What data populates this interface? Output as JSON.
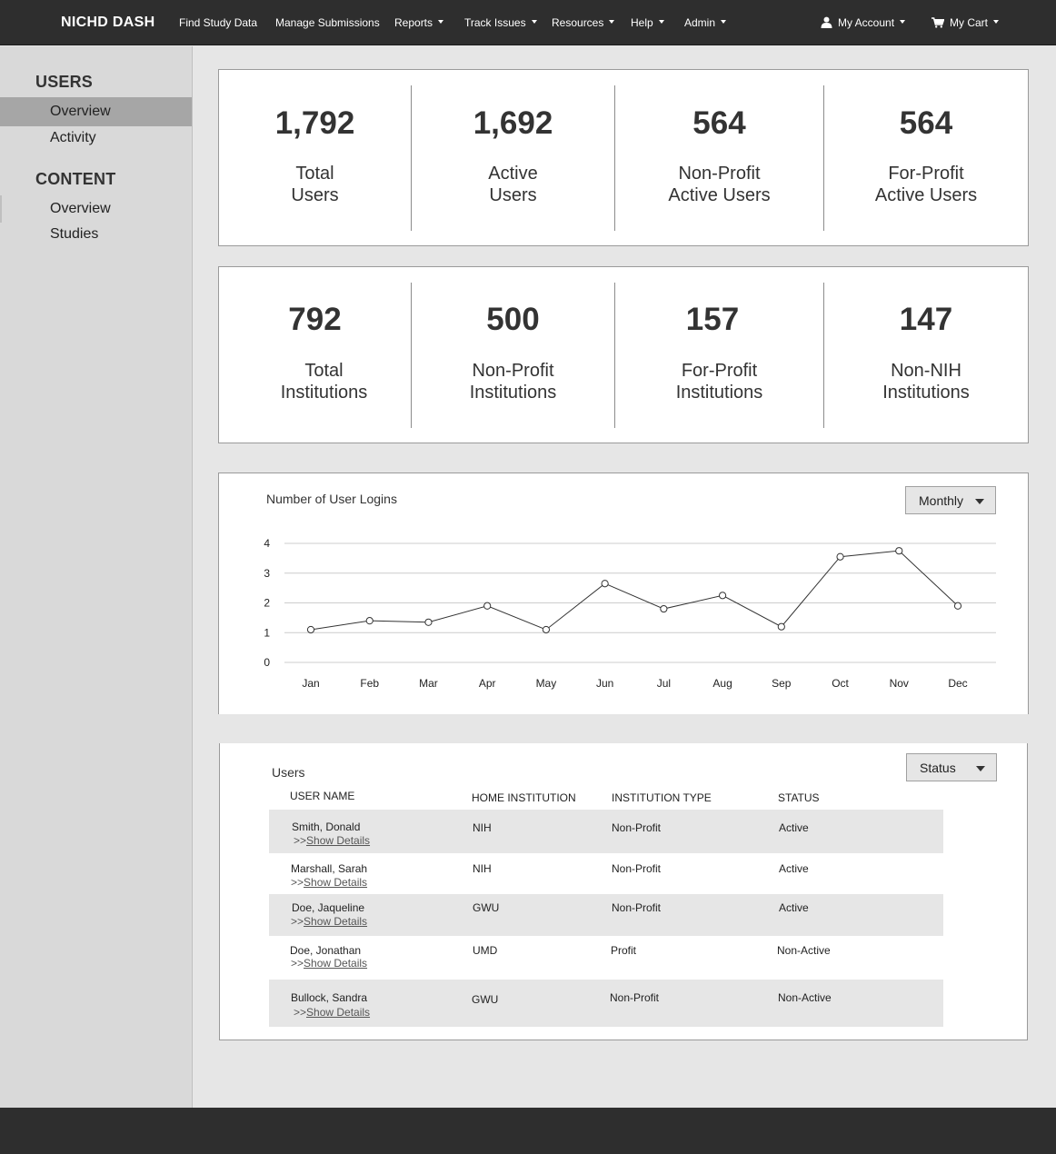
{
  "nav": {
    "brand": "NICHD DASH",
    "items": [
      "Find Study Data",
      "Manage Submissions",
      "Reports",
      "Track Issues",
      "Resources",
      "Help",
      "Admin"
    ],
    "account": "My Account",
    "cart": "My Cart"
  },
  "sidebar": {
    "sections": [
      {
        "heading": "USERS",
        "items": [
          "Overview",
          "Activity"
        ]
      },
      {
        "heading": "CONTENT",
        "items": [
          "Overview",
          "Studies"
        ]
      }
    ]
  },
  "user_stats": [
    {
      "value": "1,792",
      "label1": "Total",
      "label2": "Users"
    },
    {
      "value": "1,692",
      "label1": "Active",
      "label2": "Users"
    },
    {
      "value": "564",
      "label1": "Non-Profit",
      "label2": "Active Users"
    },
    {
      "value": "564",
      "label1": "For-Profit",
      "label2": "Active Users"
    }
  ],
  "institution_stats": [
    {
      "value": "792",
      "label1": "Total",
      "label2": "Institutions"
    },
    {
      "value": "500",
      "label1": "Non-Profit",
      "label2": "Institutions"
    },
    {
      "value": "157",
      "label1": "For-Profit",
      "label2": "Institutions"
    },
    {
      "value": "147",
      "label1": "Non-NIH",
      "label2": "Institutions"
    }
  ],
  "logins_chart": {
    "title": "Number of User Logins",
    "period_selected": "Monthly"
  },
  "chart_data": {
    "type": "line",
    "title": "Number of User Logins",
    "categories": [
      "Jan",
      "Feb",
      "Mar",
      "Apr",
      "May",
      "Jun",
      "Jul",
      "Aug",
      "Sep",
      "Oct",
      "Nov",
      "Dec"
    ],
    "values": [
      1.1,
      1.4,
      1.35,
      1.9,
      1.1,
      2.65,
      1.8,
      2.25,
      1.2,
      3.55,
      3.75,
      1.9
    ],
    "yticks": [
      "0",
      "1",
      "2",
      "3",
      "4"
    ],
    "ylim": [
      0,
      4
    ],
    "xlabel": "",
    "ylabel": "",
    "grid": true,
    "line_color": "#333333"
  },
  "users_table": {
    "title": "Users",
    "filter_selected": "Status",
    "columns": [
      "USER NAME",
      "HOME INSTITUTION",
      "INSTITUTION TYPE",
      "STATUS"
    ],
    "details_prefix": ">>",
    "details_label": "Show Details",
    "rows": [
      {
        "name": "Smith, Donald",
        "institution": "NIH",
        "type": "Non-Profit",
        "status": "Active"
      },
      {
        "name": "Marshall, Sarah",
        "institution": "NIH",
        "type": "Non-Profit",
        "status": "Active"
      },
      {
        "name": "Doe, Jaqueline",
        "institution": "GWU",
        "type": "Non-Profit",
        "status": "Active"
      },
      {
        "name": "Doe, Jonathan",
        "institution": "UMD",
        "type": "Profit",
        "status": "Non-Active"
      },
      {
        "name": "Bullock, Sandra",
        "institution": "GWU",
        "type": "Non-Profit",
        "status": "Non-Active"
      }
    ]
  }
}
